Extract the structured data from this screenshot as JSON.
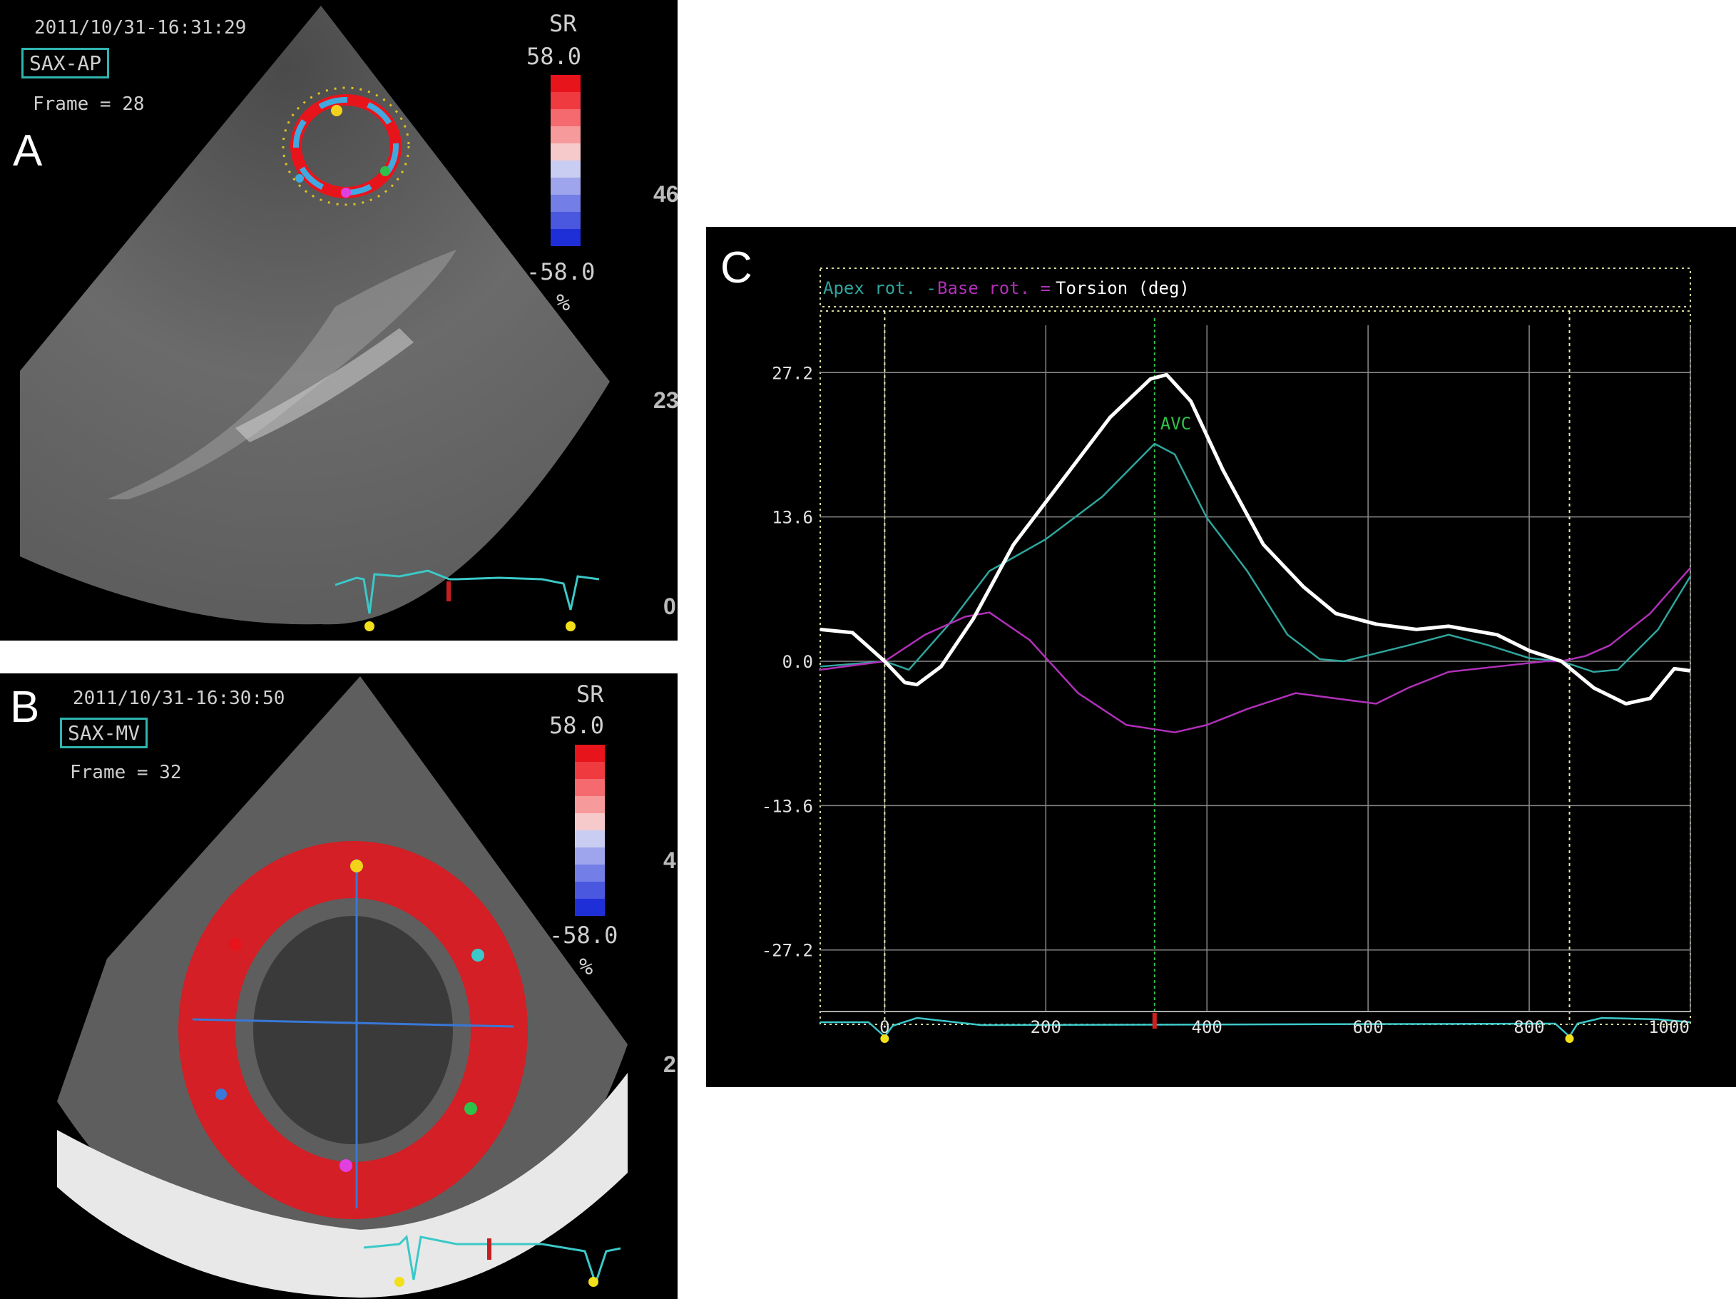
{
  "panel_a": {
    "letter": "A",
    "timestamp": "2011/10/31-16:31:29",
    "view": "SAX-AP",
    "frame": "Frame = 28",
    "sr_label": "SR",
    "scale_top": "58.0",
    "scale_bottom": "-58.0",
    "unit": "%",
    "depth_marks": [
      "46",
      "23",
      "0"
    ]
  },
  "panel_b": {
    "letter": "B",
    "timestamp": "2011/10/31-16:30:50",
    "view": "SAX-MV",
    "frame": "Frame = 32",
    "sr_label": "SR",
    "scale_top": "58.0",
    "scale_bottom": "-58.0",
    "unit": "%",
    "depth_marks": [
      "4",
      "2"
    ]
  },
  "colors": {
    "scale": [
      "#e8141b",
      "#ef3a40",
      "#f46a6e",
      "#f79a9c",
      "#f6c9cb",
      "#c9cdf2",
      "#9ea5ec",
      "#737ee6",
      "#4a57df",
      "#1f2fd8"
    ],
    "apex": "#2fa59d",
    "base": "#b030b8",
    "torsion": "#ffffff",
    "avc": "#2ec24b",
    "ecg": "#3cc8c8"
  },
  "chart_data": {
    "type": "line",
    "letter": "C",
    "title": "",
    "legend": [
      {
        "text": "Apex rot. -",
        "color": "#2fa59d"
      },
      {
        "text": "Base rot. =",
        "color": "#b030b8"
      },
      {
        "text": "Torsion  (deg)",
        "color": "#ffffff"
      }
    ],
    "x_ticks": [
      "0",
      "200",
      "400",
      "600",
      "800",
      "1000"
    ],
    "y_ticks": [
      "27.2",
      "13.6",
      "0.0",
      "-13.6",
      "-27.2"
    ],
    "xlim": [
      -80,
      1000
    ],
    "ylim": [
      -33,
      33
    ],
    "marker": {
      "label": "AVC",
      "x": 335
    },
    "series": [
      {
        "name": "Apex rot.",
        "x": [
          -80,
          0,
          30,
          80,
          130,
          200,
          270,
          335,
          360,
          400,
          450,
          500,
          540,
          570,
          650,
          700,
          750,
          800,
          840,
          880,
          910,
          960,
          1000
        ],
        "y": [
          -0.5,
          0,
          -0.8,
          3.5,
          8.5,
          11.5,
          15.5,
          20.5,
          19.5,
          13.5,
          8.5,
          2.5,
          0.2,
          0.0,
          1.5,
          2.5,
          1.5,
          0.3,
          0,
          -1.0,
          -0.8,
          3.0,
          8.0
        ]
      },
      {
        "name": "Base rot.",
        "x": [
          -80,
          0,
          50,
          100,
          130,
          180,
          240,
          300,
          360,
          400,
          450,
          510,
          560,
          610,
          650,
          700,
          760,
          820,
          840,
          870,
          900,
          950,
          1000
        ],
        "y": [
          -0.8,
          0,
          2.5,
          4.2,
          4.6,
          2.0,
          -3.0,
          -6.0,
          -6.7,
          -6.0,
          -4.5,
          -3.0,
          -3.5,
          -4.0,
          -2.5,
          -1.0,
          -0.5,
          0,
          0,
          0.5,
          1.5,
          4.5,
          8.8
        ]
      },
      {
        "name": "Torsion",
        "x": [
          -80,
          -40,
          0,
          25,
          40,
          70,
          110,
          160,
          220,
          280,
          330,
          350,
          380,
          420,
          470,
          520,
          560,
          610,
          660,
          700,
          760,
          800,
          840,
          880,
          920,
          950,
          980,
          1000
        ],
        "y": [
          3.0,
          2.7,
          0,
          -2.0,
          -2.2,
          -0.5,
          4.0,
          11.0,
          17.0,
          23.0,
          26.6,
          27.0,
          24.5,
          18.0,
          11.0,
          7.0,
          4.5,
          3.5,
          3.0,
          3.3,
          2.5,
          1.0,
          0,
          -2.5,
          -4.0,
          -3.5,
          -0.7,
          -0.9
        ]
      }
    ]
  }
}
